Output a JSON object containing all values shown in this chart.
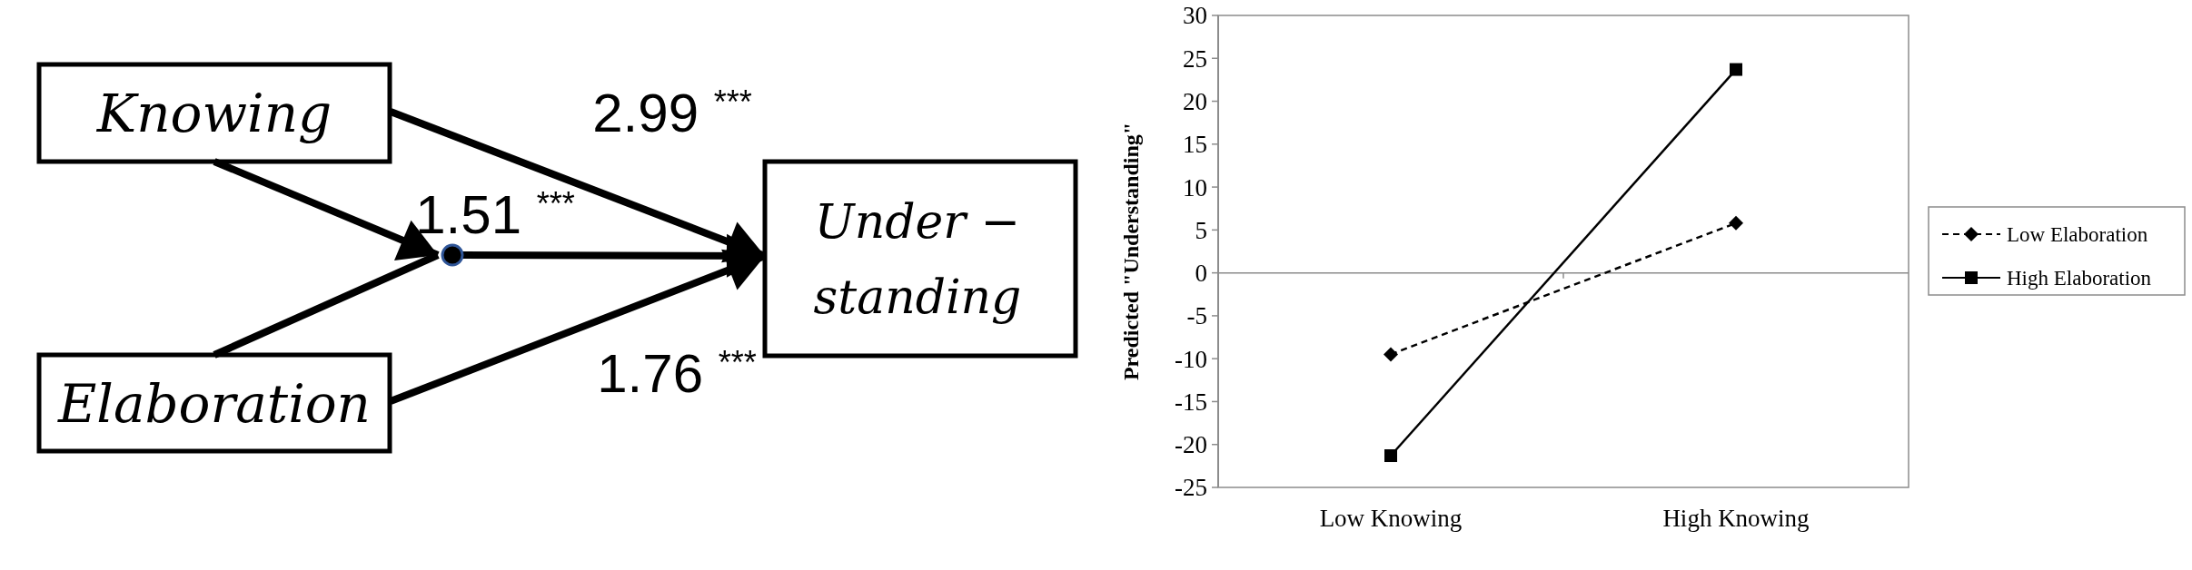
{
  "chart_data": [
    {
      "type": "other",
      "annotations": [
        "Knowing",
        "Elaboration",
        "Under −",
        "standing",
        "2.99 $^{***}$",
        "1.51 $^{***}$",
        "1.76 $^{***}$"
      ]
    },
    {
      "type": "line",
      "ylabel": "Predicted \"Understanding\"",
      "categories": [
        "Low Knowing",
        "High Knowing"
      ],
      "series": [
        {
          "name": "Low Elaboration",
          "color": "#000000",
          "values": [
            -9.5,
            5.8
          ],
          "line_style": "dashed",
          "marker": "diamond"
        },
        {
          "name": "High Elaboration",
          "color": "#000000",
          "values": [
            -21.3,
            23.7
          ],
          "line_style": "solid",
          "marker": "square"
        }
      ],
      "ylim": [
        -25,
        30
      ],
      "yticks": [
        -25,
        -20,
        -15,
        -10,
        -5,
        0,
        5,
        10,
        15,
        20,
        25,
        30
      ],
      "ref_lines": [
        {
          "axis": "y",
          "value": 0,
          "color": "#8c8c8c"
        }
      ],
      "grid": false,
      "legend": "right"
    }
  ]
}
